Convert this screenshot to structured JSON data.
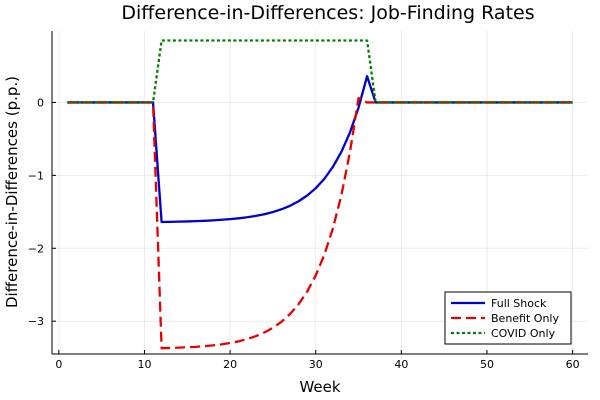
{
  "chart_data": {
    "type": "line",
    "title": "Difference-in-Differences: Job-Finding Rates",
    "xlabel": "Week",
    "ylabel": "Difference-in-Differences (p.p.)",
    "xlim": [
      -0.8,
      61.8
    ],
    "ylim": [
      -3.45,
      0.98
    ],
    "xticks": [
      0,
      10,
      20,
      30,
      40,
      50,
      60
    ],
    "yticks": [
      -3,
      -2,
      -1,
      0
    ],
    "ytick_labels": [
      "−3",
      "−2",
      "−1",
      "0"
    ],
    "grid": true,
    "legend_position": "bottom-right",
    "series": [
      {
        "name": "Full Shock",
        "color": "#0000cc",
        "dash": "solid",
        "x": [
          1,
          2,
          3,
          4,
          5,
          6,
          7,
          8,
          9,
          10,
          11,
          12,
          13,
          14,
          15,
          16,
          17,
          18,
          19,
          20,
          21,
          22,
          23,
          24,
          25,
          26,
          27,
          28,
          29,
          30,
          31,
          32,
          33,
          34,
          35,
          36,
          37,
          38,
          39,
          40,
          41,
          42,
          43,
          44,
          45,
          46,
          47,
          48,
          49,
          50,
          51,
          52,
          53,
          54,
          55,
          56,
          57,
          58,
          59,
          60
        ],
        "values": [
          0,
          0,
          0,
          0,
          0,
          0,
          0,
          0,
          0,
          0,
          0,
          -1.64,
          -1.638,
          -1.635,
          -1.632,
          -1.628,
          -1.623,
          -1.617,
          -1.609,
          -1.6,
          -1.589,
          -1.574,
          -1.556,
          -1.533,
          -1.503,
          -1.465,
          -1.417,
          -1.355,
          -1.276,
          -1.176,
          -1.048,
          -0.885,
          -0.677,
          -0.411,
          -0.072,
          0.36,
          0,
          0,
          0,
          0,
          0,
          0,
          0,
          0,
          0,
          0,
          0,
          0,
          0,
          0,
          0,
          0,
          0,
          0,
          0,
          0,
          0,
          0,
          0,
          0
        ]
      },
      {
        "name": "Benefit Only",
        "color": "#e60000",
        "dash": "dashed",
        "x": [
          1,
          2,
          3,
          4,
          5,
          6,
          7,
          8,
          9,
          10,
          11,
          12,
          13,
          14,
          15,
          16,
          17,
          18,
          19,
          20,
          21,
          22,
          23,
          24,
          25,
          26,
          27,
          28,
          29,
          30,
          31,
          32,
          33,
          34,
          35,
          36,
          37,
          38,
          39,
          40,
          41,
          42,
          43,
          44,
          45,
          46,
          47,
          48,
          49,
          50,
          51,
          52,
          53,
          54,
          55,
          56,
          57,
          58,
          59,
          60
        ],
        "values": [
          0,
          0,
          0,
          0,
          0,
          0,
          0,
          0,
          0,
          0,
          0,
          -3.37,
          -3.367,
          -3.363,
          -3.358,
          -3.352,
          -3.343,
          -3.332,
          -3.318,
          -3.299,
          -3.276,
          -3.245,
          -3.206,
          -3.155,
          -3.091,
          -3.008,
          -2.902,
          -2.767,
          -2.594,
          -2.372,
          -2.09,
          -1.73,
          -1.27,
          -0.68,
          0.06,
          0,
          0,
          0,
          0,
          0,
          0,
          0,
          0,
          0,
          0,
          0,
          0,
          0,
          0,
          0,
          0,
          0,
          0,
          0,
          0,
          0,
          0,
          0,
          0,
          0
        ]
      },
      {
        "name": "COVID Only",
        "color": "#008000",
        "dash": "dotted",
        "x": [
          1,
          11,
          12,
          36,
          37,
          60
        ],
        "values": [
          0,
          0,
          0.85,
          0.85,
          0,
          0
        ]
      }
    ]
  }
}
